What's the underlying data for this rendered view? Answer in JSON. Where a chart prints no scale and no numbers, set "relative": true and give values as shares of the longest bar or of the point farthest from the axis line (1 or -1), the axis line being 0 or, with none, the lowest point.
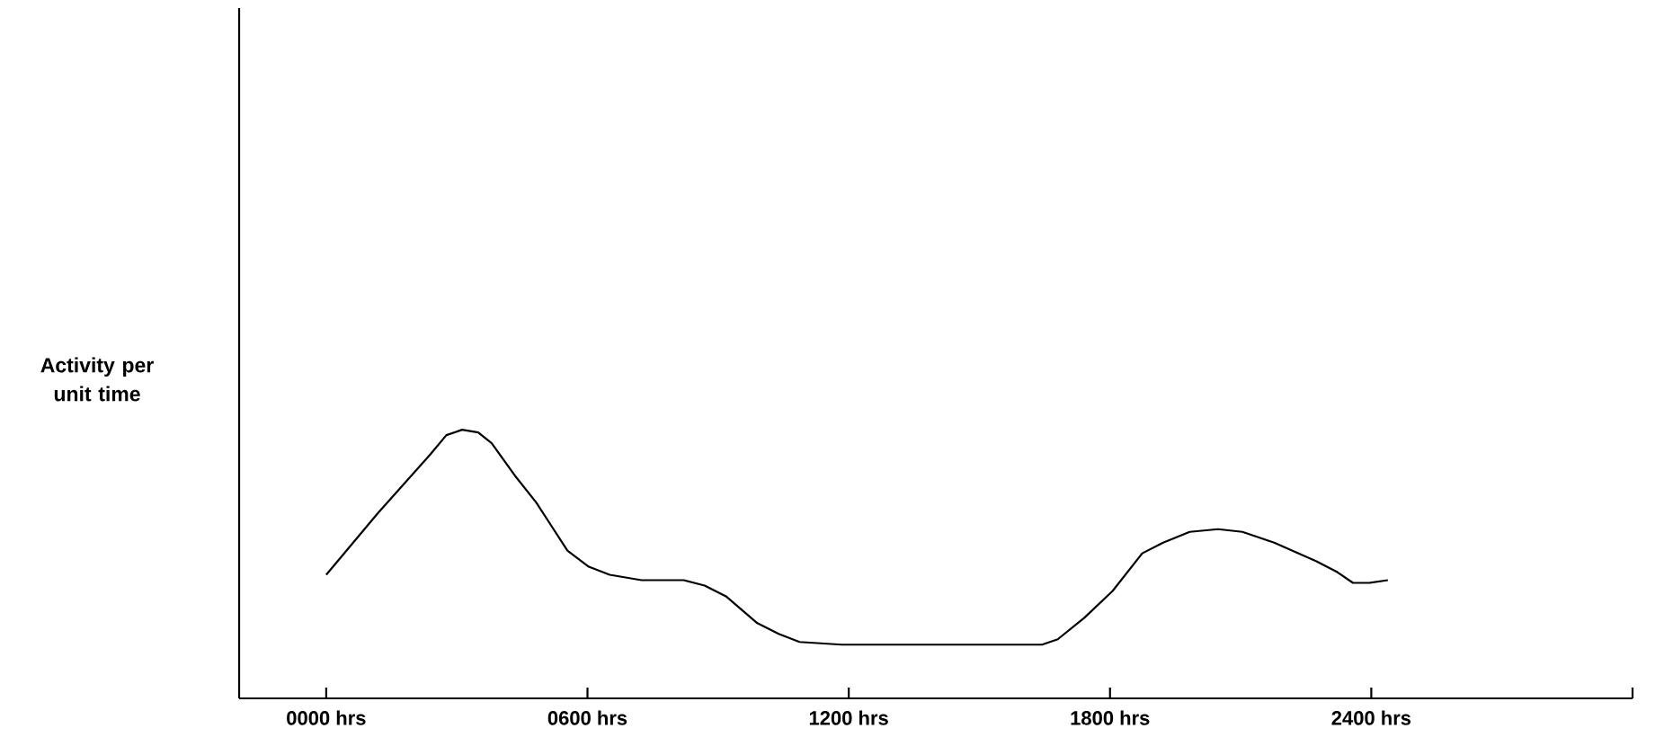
{
  "chart_data": {
    "type": "line",
    "ylabel": "Activity per unit time",
    "relative": true,
    "xlim": [
      -200,
      3000
    ],
    "xticks": [
      {
        "value": 0,
        "label": "0000 hrs"
      },
      {
        "value": 600,
        "label": "0600 hrs"
      },
      {
        "value": 1200,
        "label": "1200 hrs"
      },
      {
        "value": 1800,
        "label": "1800 hrs"
      },
      {
        "value": 2400,
        "label": "2400 hrs"
      },
      {
        "value": 3000,
        "label": null
      }
    ],
    "x": [
      0,
      119,
      240,
      276,
      312,
      349,
      380,
      433,
      482,
      518,
      554,
      603,
      651,
      724,
      821,
      869,
      918,
      990,
      1039,
      1087,
      1184,
      1426,
      1644,
      1680,
      1741,
      1806,
      1874,
      1922,
      1983,
      2048,
      2104,
      2177,
      2274,
      2322,
      2358,
      2395,
      2438
    ],
    "series": [
      {
        "color": "#000000",
        "values": [
          0.46,
          0.69,
          0.91,
          0.98,
          1.0,
          0.99,
          0.95,
          0.83,
          0.73,
          0.64,
          0.55,
          0.49,
          0.46,
          0.44,
          0.44,
          0.42,
          0.38,
          0.28,
          0.24,
          0.21,
          0.2,
          0.2,
          0.2,
          0.22,
          0.3,
          0.4,
          0.54,
          0.58,
          0.62,
          0.63,
          0.62,
          0.58,
          0.51,
          0.47,
          0.43,
          0.43,
          0.44
        ]
      }
    ]
  }
}
